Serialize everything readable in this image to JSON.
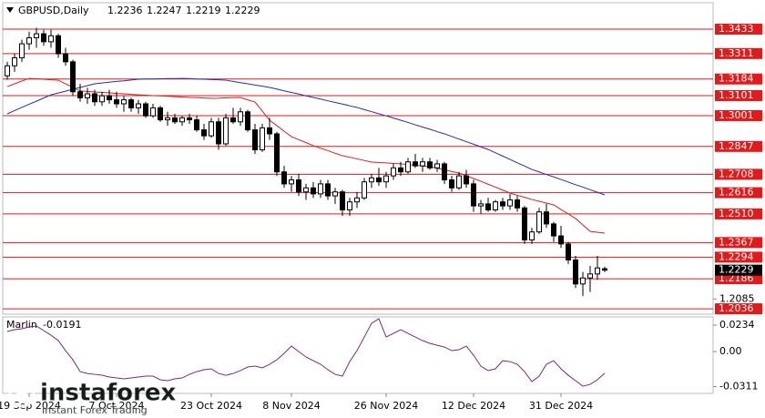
{
  "chart_data": [
    {
      "type": "candlestick",
      "title": "GBPUSD,Daily",
      "categories": [
        null,
        null,
        null,
        "19 Sep 2024",
        null,
        null,
        null,
        null,
        null,
        null,
        null,
        null,
        null,
        null,
        null,
        "7 Oct 2024",
        null,
        null,
        null,
        null,
        null,
        null,
        null,
        null,
        null,
        null,
        null,
        null,
        "23 Oct 2024",
        null,
        null,
        null,
        null,
        null,
        null,
        null,
        null,
        null,
        null,
        "8 Nov 2024",
        null,
        null,
        null,
        null,
        null,
        null,
        null,
        null,
        null,
        null,
        null,
        null,
        "26 Nov 2024",
        null,
        null,
        null,
        null,
        null,
        null,
        null,
        null,
        null,
        null,
        null,
        "12 Dec 2024",
        null,
        null,
        null,
        null,
        null,
        null,
        null,
        null,
        null,
        null,
        null,
        "31 Dec 2024",
        null,
        null,
        null,
        null,
        null,
        null
      ],
      "open": [
        1.32,
        1.325,
        1.329,
        1.336,
        1.339,
        1.341,
        1.337,
        1.34,
        1.331,
        1.327,
        1.312,
        1.309,
        1.311,
        1.307,
        1.31,
        1.308,
        1.306,
        1.308,
        1.304,
        1.306,
        1.3,
        1.304,
        1.298,
        1.299,
        1.297,
        1.299,
        1.298,
        1.293,
        1.29,
        1.297,
        1.286,
        1.299,
        1.297,
        1.302,
        1.293,
        1.283,
        1.294,
        1.291,
        1.272,
        1.266,
        1.268,
        1.262,
        1.264,
        1.261,
        1.266,
        1.26,
        1.262,
        1.253,
        1.257,
        1.259,
        1.267,
        1.269,
        1.267,
        1.27,
        1.274,
        1.272,
        1.277,
        1.275,
        1.277,
        1.274,
        1.276,
        1.268,
        1.264,
        1.27,
        1.266,
        1.255,
        1.256,
        1.253,
        1.257,
        1.255,
        1.258,
        1.254,
        1.238,
        1.242,
        1.252,
        1.246,
        1.24,
        1.236,
        1.228,
        1.216,
        1.219,
        1.221,
        1.2236
      ],
      "high": [
        1.327,
        1.331,
        1.338,
        1.342,
        1.344,
        1.343,
        1.343,
        1.341,
        1.334,
        1.328,
        1.316,
        1.314,
        1.313,
        1.312,
        1.313,
        1.312,
        1.31,
        1.309,
        1.308,
        1.307,
        1.306,
        1.305,
        1.302,
        1.301,
        1.3,
        1.301,
        1.3,
        1.296,
        1.299,
        1.299,
        1.301,
        1.304,
        1.304,
        1.303,
        1.296,
        1.296,
        1.299,
        1.292,
        1.275,
        1.27,
        1.271,
        1.266,
        1.267,
        1.268,
        1.268,
        1.264,
        1.263,
        1.259,
        1.262,
        1.269,
        1.271,
        1.274,
        1.272,
        1.276,
        1.277,
        1.279,
        1.281,
        1.279,
        1.279,
        1.278,
        1.277,
        1.27,
        1.272,
        1.273,
        1.268,
        1.258,
        1.259,
        1.258,
        1.259,
        1.261,
        1.26,
        1.255,
        1.244,
        1.254,
        1.256,
        1.247,
        1.245,
        1.237,
        1.23,
        1.222,
        1.225,
        1.23,
        1.2247
      ],
      "low": [
        1.318,
        1.322,
        1.327,
        1.333,
        1.334,
        1.335,
        1.334,
        1.329,
        1.325,
        1.31,
        1.307,
        1.306,
        1.305,
        1.305,
        1.306,
        1.304,
        1.302,
        1.302,
        1.301,
        1.299,
        1.299,
        1.297,
        1.295,
        1.296,
        1.295,
        1.296,
        1.292,
        1.288,
        1.289,
        1.283,
        1.285,
        1.296,
        1.295,
        1.292,
        1.281,
        1.282,
        1.288,
        1.27,
        1.264,
        1.262,
        1.26,
        1.258,
        1.259,
        1.259,
        1.258,
        1.256,
        1.25,
        1.25,
        1.254,
        1.258,
        1.264,
        1.265,
        1.264,
        1.268,
        1.27,
        1.271,
        1.274,
        1.272,
        1.273,
        1.272,
        1.266,
        1.262,
        1.263,
        1.264,
        1.252,
        1.251,
        1.252,
        1.252,
        1.253,
        1.253,
        1.252,
        1.236,
        1.236,
        1.241,
        1.244,
        1.237,
        1.234,
        1.226,
        1.214,
        1.21,
        1.212,
        1.218,
        1.2219
      ],
      "close": [
        1.325,
        1.329,
        1.336,
        1.339,
        1.341,
        1.337,
        1.34,
        1.331,
        1.327,
        1.312,
        1.309,
        1.311,
        1.307,
        1.31,
        1.308,
        1.306,
        1.308,
        1.304,
        1.306,
        1.3,
        1.304,
        1.298,
        1.299,
        1.297,
        1.299,
        1.298,
        1.293,
        1.29,
        1.297,
        1.286,
        1.299,
        1.297,
        1.302,
        1.293,
        1.283,
        1.294,
        1.291,
        1.272,
        1.266,
        1.268,
        1.262,
        1.264,
        1.261,
        1.266,
        1.26,
        1.262,
        1.253,
        1.257,
        1.259,
        1.267,
        1.269,
        1.267,
        1.27,
        1.274,
        1.272,
        1.277,
        1.275,
        1.277,
        1.274,
        1.276,
        1.268,
        1.264,
        1.27,
        1.266,
        1.255,
        1.256,
        1.253,
        1.257,
        1.255,
        1.258,
        1.254,
        1.238,
        1.242,
        1.252,
        1.246,
        1.24,
        1.236,
        1.228,
        1.216,
        1.219,
        1.221,
        1.224,
        1.2229
      ],
      "moving_averages": [
        {
          "color": "#d42020",
          "values": [
            1.3146,
            1.316,
            1.3174,
            1.3187,
            1.3185,
            1.3183,
            1.318,
            1.3178,
            1.316,
            1.3142,
            1.3124,
            1.3122,
            1.3119,
            1.3117,
            1.3115,
            1.3112,
            1.311,
            1.3107,
            1.3105,
            1.3103,
            1.3101,
            1.31,
            1.3098,
            1.3096,
            1.3094,
            1.3092,
            1.3091,
            1.3089,
            1.3087,
            1.3088,
            1.309,
            1.3091,
            1.3092,
            1.308,
            1.3069,
            1.3024,
            1.2978,
            1.2951,
            1.2923,
            1.2896,
            1.2881,
            1.2866,
            1.2851,
            1.2838,
            1.2826,
            1.2813,
            1.2801,
            1.2793,
            1.2785,
            1.2777,
            1.2769,
            1.2767,
            1.2765,
            1.2762,
            1.276,
            1.2756,
            1.2753,
            1.2749,
            1.2746,
            1.2738,
            1.273,
            1.2722,
            1.2714,
            1.27,
            1.2687,
            1.2673,
            1.2658,
            1.2644,
            1.2629,
            1.2614,
            1.2603,
            1.2593,
            1.2582,
            1.2573,
            1.2564,
            1.2555,
            1.2532,
            1.251,
            1.2487,
            1.2455,
            1.2423,
            1.2418,
            1.2414
          ]
        },
        {
          "color": "#2030b0",
          "values": [
            1.301,
            1.3026,
            1.3042,
            1.3058,
            1.3073,
            1.3089,
            1.3105,
            1.3114,
            1.3123,
            1.3133,
            1.3142,
            1.3151,
            1.316,
            1.3164,
            1.3168,
            1.3172,
            1.3175,
            1.3179,
            1.3183,
            1.3184,
            1.3184,
            1.3185,
            1.3186,
            1.3186,
            1.3187,
            1.3186,
            1.3184,
            1.3183,
            1.3181,
            1.318,
            1.3178,
            1.3172,
            1.3166,
            1.316,
            1.3154,
            1.3148,
            1.3142,
            1.3134,
            1.3125,
            1.3117,
            1.3109,
            1.31,
            1.3092,
            1.3084,
            1.3075,
            1.3067,
            1.3059,
            1.305,
            1.3042,
            1.3031,
            1.3021,
            1.301,
            1.3,
            1.2989,
            1.2978,
            1.2967,
            1.2955,
            1.2944,
            1.2933,
            1.2921,
            1.291,
            1.2897,
            1.2884,
            1.2871,
            1.2858,
            1.2845,
            1.2832,
            1.2815,
            1.2799,
            1.2782,
            1.2765,
            1.2749,
            1.2732,
            1.272,
            1.2707,
            1.2695,
            1.2682,
            1.2669,
            1.2656,
            1.2644,
            1.2631,
            1.2618,
            1.2605
          ]
        }
      ],
      "levels": [
        1.3433,
        1.3311,
        1.3184,
        1.3101,
        1.3001,
        1.2847,
        1.2708,
        1.2616,
        {
          "value": 1.251,
          "label": "1.2510"
        },
        1.2367,
        1.2294,
        1.2186,
        1.2036
      ],
      "level_color": "#e41a1a",
      "ylim": [
        1.2009,
        1.3565
      ],
      "yticks": [
        1.2085
      ]
    },
    {
      "type": "line",
      "title": "Marlin",
      "color": "#7b2a7b",
      "values": [
        0.0178,
        0.0194,
        0.0202,
        0.0218,
        0.0226,
        0.0186,
        0.0145,
        0.0097,
        0.0008,
        -0.0073,
        -0.0178,
        -0.0194,
        -0.0202,
        -0.021,
        -0.0226,
        -0.0234,
        -0.0242,
        -0.0234,
        -0.0226,
        -0.0218,
        -0.0218,
        -0.025,
        -0.0258,
        -0.0242,
        -0.0234,
        -0.0202,
        -0.0178,
        -0.0161,
        -0.0153,
        -0.0194,
        -0.021,
        -0.0194,
        -0.0169,
        -0.0137,
        -0.0129,
        -0.0145,
        -0.0113,
        -0.0073,
        -0.0016,
        0.0048,
        0.0,
        -0.0048,
        -0.0081,
        -0.0113,
        -0.0161,
        -0.0202,
        -0.0218,
        -0.0089,
        0.0008,
        0.0129,
        0.025,
        0.0291,
        0.0129,
        0.0161,
        0.0194,
        0.0161,
        0.0129,
        0.0097,
        0.0073,
        0.0056,
        0.004,
        0.0008,
        0.0016,
        0.0048,
        -0.0032,
        -0.0129,
        -0.0169,
        -0.0153,
        -0.0081,
        -0.0089,
        -0.0113,
        -0.0178,
        -0.0266,
        -0.0218,
        -0.0113,
        -0.0081,
        -0.0153,
        -0.021,
        -0.0258,
        -0.0307,
        -0.0291,
        -0.025,
        -0.0191
      ],
      "ylim": [
        -0.0371,
        0.0307
      ],
      "yticks": [
        0.0234,
        {
          "value": 0,
          "label": "0.00"
        },
        -0.0311
      ]
    }
  ],
  "watermark": {
    "brand": "instaforex",
    "tagline": "Instant Forex Trading"
  }
}
